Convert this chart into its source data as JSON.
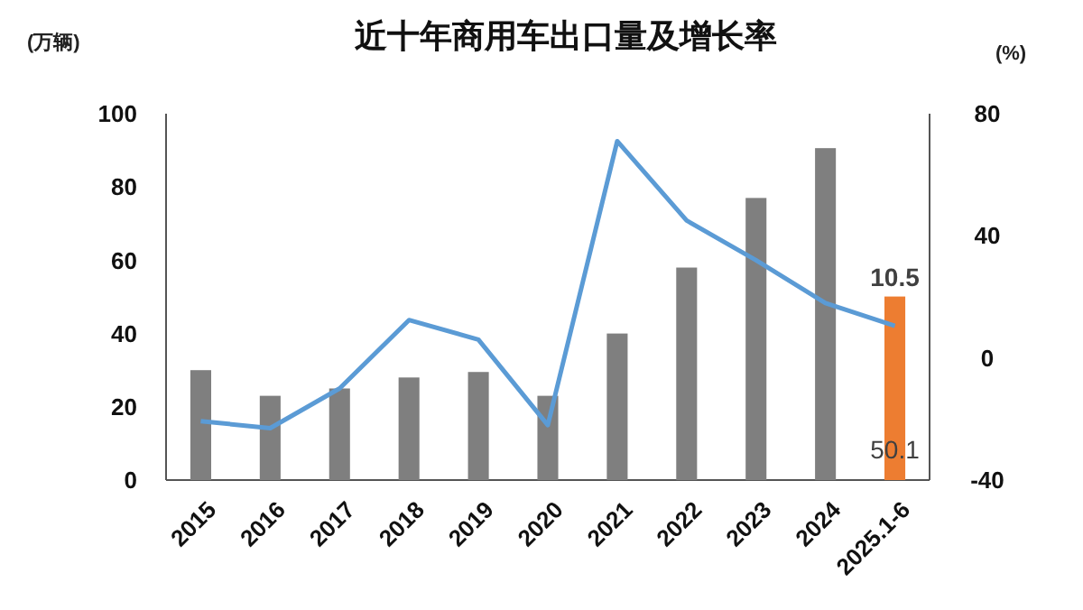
{
  "chart_data": {
    "type": "bar",
    "title": "近十年商用车出口量及增长率",
    "ylabel": "(万辆)",
    "y2label": "(%)",
    "categories": [
      "2015",
      "2016",
      "2017",
      "2018",
      "2019",
      "2020",
      "2021",
      "2022",
      "2023",
      "2024",
      "2025.1-6"
    ],
    "series": [
      {
        "colors": [
          "#7f7f7f",
          "#7f7f7f",
          "#7f7f7f",
          "#7f7f7f",
          "#7f7f7f",
          "#7f7f7f",
          "#7f7f7f",
          "#7f7f7f",
          "#7f7f7f",
          "#7f7f7f",
          "#ed7d31"
        ],
        "values": [
          30,
          23,
          25,
          28,
          29.5,
          23,
          40,
          58,
          77,
          90.6,
          50.1
        ],
        "value_labels": [
          null,
          null,
          null,
          null,
          null,
          null,
          null,
          null,
          null,
          null,
          "50.1"
        ]
      },
      {
        "type": "line",
        "axis": "y2",
        "color": "#5b9bd5",
        "values": [
          -20.7,
          -23,
          -10,
          12.4,
          6,
          -22,
          71,
          45,
          32,
          18,
          10.5
        ],
        "value_labels": [
          null,
          null,
          null,
          null,
          null,
          null,
          null,
          null,
          null,
          null,
          "10.5"
        ]
      }
    ],
    "ylim": [
      0,
      100
    ],
    "yticks": [
      0,
      20,
      40,
      60,
      80,
      100
    ],
    "y2lim": [
      -40,
      80
    ],
    "y2ticks": [
      -40,
      0,
      40,
      80
    ],
    "grid": false,
    "marker": "none"
  }
}
